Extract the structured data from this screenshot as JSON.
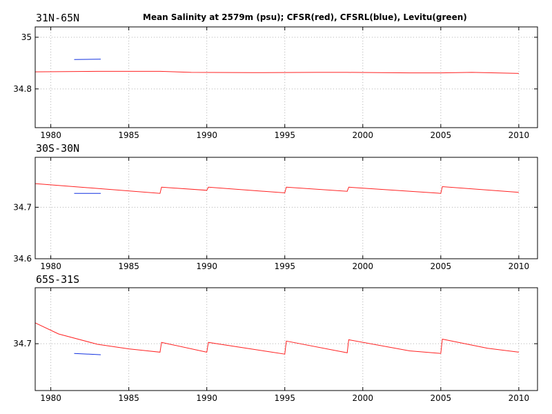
{
  "title": "Mean Salinity at 2579m (psu); CFSR(red), CFSRL(blue), Levitu(green)",
  "colors": {
    "CFSR": "#ff2020",
    "CFSRL": "#1030e0",
    "Levitus": "#00a000"
  },
  "chart_data": [
    {
      "type": "line",
      "title": "31N-65N",
      "xlim": [
        1979,
        2011.2
      ],
      "ylim": [
        34.65,
        35.04
      ],
      "xticks": [
        1980,
        1985,
        1990,
        1995,
        2000,
        2005,
        2010
      ],
      "yticks": [
        34.8,
        35
      ],
      "ytick_labels": [
        "34.8",
        "35"
      ],
      "grid": true,
      "series": [
        {
          "name": "CFSR",
          "color": "#ff2020",
          "x": [
            1979.0,
            1983.0,
            1987.0,
            1989.0,
            1993.0,
            1997.0,
            1999.0,
            2003.0,
            2005.0,
            2007.0,
            2010.0
          ],
          "y": [
            34.866,
            34.868,
            34.868,
            34.864,
            34.863,
            34.864,
            34.864,
            34.862,
            34.862,
            34.864,
            34.86
          ]
        },
        {
          "name": "CFSRL",
          "color": "#1030e0",
          "x": [
            1981.5,
            1983.2
          ],
          "y": [
            34.914,
            34.915
          ]
        }
      ]
    },
    {
      "type": "line",
      "title": "30S-30N",
      "xlim": [
        1979,
        2011.2
      ],
      "ylim": [
        34.6,
        34.797
      ],
      "xticks": [
        1980,
        1985,
        1990,
        1995,
        2000,
        2005,
        2010
      ],
      "yticks": [
        34.6,
        34.7
      ],
      "ytick_labels": [
        "34.6",
        "34.7"
      ],
      "grid": true,
      "series": [
        {
          "name": "CFSR",
          "color": "#ff2020",
          "x": [
            1979.0,
            1987.0,
            1987.1,
            1990.0,
            1990.1,
            1995.0,
            1995.1,
            1999.0,
            1999.1,
            2005.0,
            2005.1,
            2010.0
          ],
          "y": [
            34.746,
            34.727,
            34.739,
            34.733,
            34.739,
            34.728,
            34.739,
            34.731,
            34.739,
            34.727,
            34.74,
            34.729
          ]
        },
        {
          "name": "CFSRL",
          "color": "#1030e0",
          "x": [
            1981.5,
            1983.2
          ],
          "y": [
            34.727,
            34.727
          ]
        }
      ]
    },
    {
      "type": "line",
      "title": "65S-31S",
      "xlim": [
        1979,
        2011.2
      ],
      "ylim": [
        34.628,
        34.786
      ],
      "xticks": [
        1980,
        1985,
        1990,
        1995,
        2000,
        2005,
        2010
      ],
      "yticks": [
        34.7
      ],
      "ytick_labels": [
        "34.7"
      ],
      "grid": true,
      "series": [
        {
          "name": "CFSR",
          "color": "#ff2020",
          "x": [
            1979.0,
            1980.5,
            1983.0,
            1985.0,
            1987.0,
            1987.1,
            1990.0,
            1990.1,
            1995.0,
            1995.1,
            1999.0,
            1999.1,
            2003.0,
            2005.0,
            2005.1,
            2008.0,
            2010.0
          ],
          "y": [
            34.732,
            34.715,
            34.699,
            34.692,
            34.687,
            34.702,
            34.687,
            34.702,
            34.684,
            34.704,
            34.686,
            34.706,
            34.689,
            34.685,
            34.707,
            34.693,
            34.687
          ]
        },
        {
          "name": "CFSRL",
          "color": "#1030e0",
          "x": [
            1981.5,
            1983.2
          ],
          "y": [
            34.685,
            34.683
          ]
        }
      ]
    }
  ]
}
